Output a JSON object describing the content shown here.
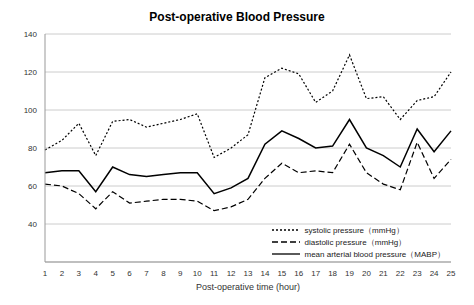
{
  "chart_data": {
    "type": "line",
    "title": "Post-operative Blood Pressure",
    "x_label": "Post-operative time (hour)",
    "x": [
      1,
      2,
      3,
      4,
      5,
      6,
      7,
      8,
      9,
      10,
      11,
      12,
      13,
      14,
      15,
      16,
      17,
      18,
      19,
      20,
      21,
      22,
      23,
      24,
      25
    ],
    "series": [
      {
        "name": "systolic pressure（mmHg）",
        "color": "#000000",
        "line_style": "dotted",
        "values": [
          79,
          84,
          93,
          76,
          94,
          95,
          91,
          93,
          95,
          98,
          75,
          80,
          87,
          117,
          122,
          119,
          104,
          110,
          129,
          106,
          107,
          95,
          105,
          107,
          120
        ]
      },
      {
        "name": "diastolic pressure（mmHg）",
        "color": "#000000",
        "line_style": "dashed",
        "values": [
          61,
          60,
          56,
          48,
          57,
          51,
          52,
          53,
          53,
          52,
          47,
          49,
          53,
          64,
          72,
          67,
          68,
          67,
          82,
          67,
          61,
          58,
          83,
          64,
          74
        ]
      },
      {
        "name": "mean arterial blood pressure（MABP）",
        "color": "#000000",
        "line_style": "solid",
        "values": [
          67,
          68,
          68,
          57,
          70,
          66,
          65,
          66,
          67,
          67,
          56,
          59,
          64,
          82,
          89,
          85,
          80,
          81,
          95,
          80,
          76,
          70,
          90,
          78,
          89
        ]
      }
    ],
    "ylim": [
      20,
      140
    ],
    "yticks": [
      40,
      60,
      80,
      100,
      120,
      140
    ],
    "grid": true,
    "legend": "lower right"
  }
}
